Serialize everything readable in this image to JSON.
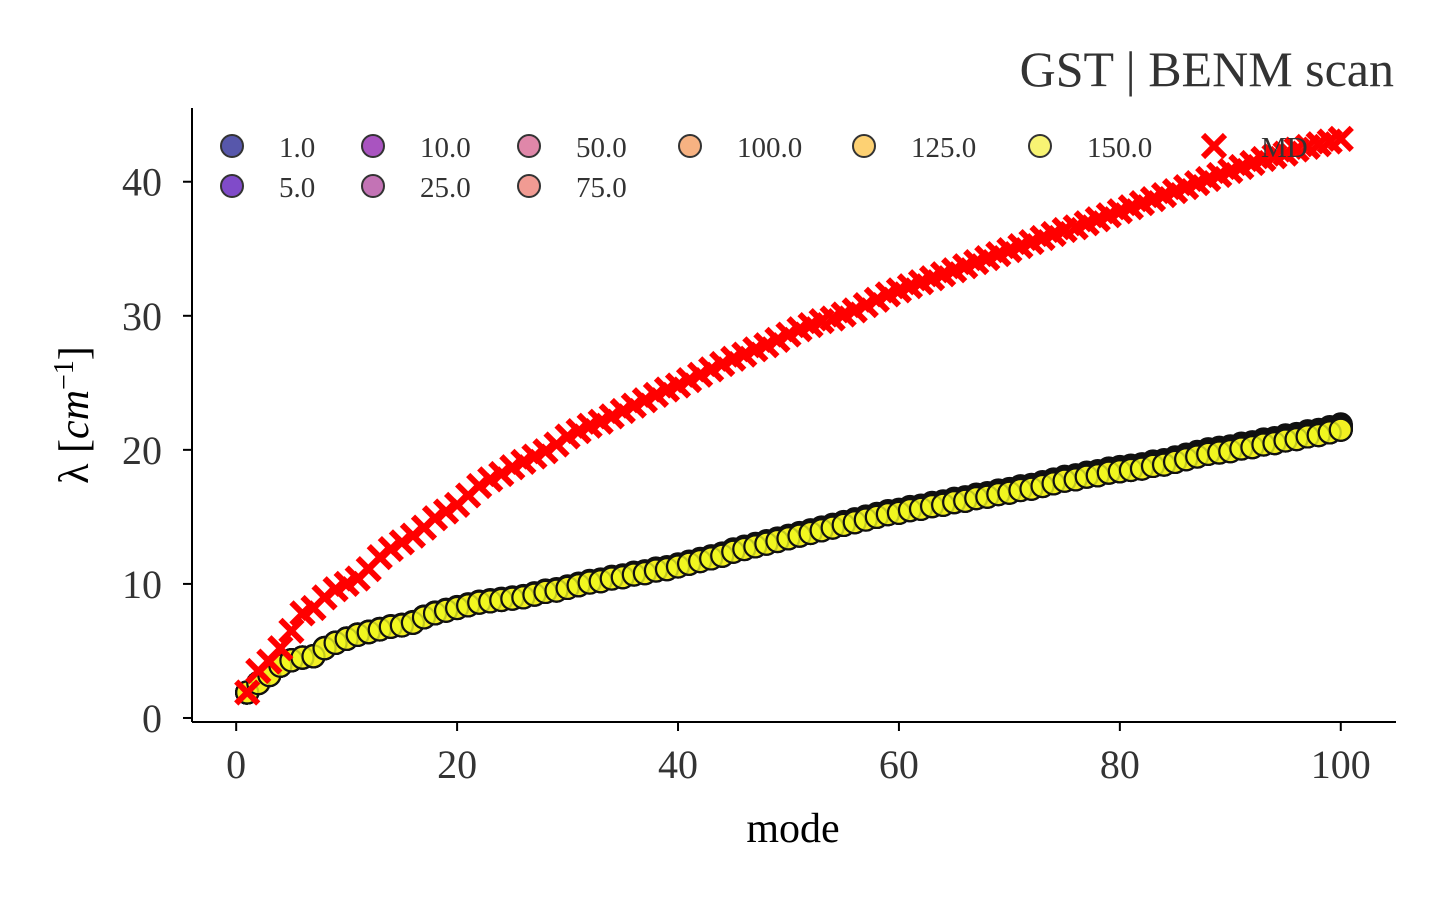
{
  "chart_data": {
    "type": "scatter",
    "title": "GST | BENM scan",
    "xlabel": "mode",
    "ylabel_prefix": "λ [",
    "ylabel_var": "cm",
    "ylabel_sup": "−1",
    "ylabel_suffix": "]",
    "xlim": [
      -4,
      105
    ],
    "ylim": [
      -0.3,
      45.5
    ],
    "xticks": [
      0,
      20,
      40,
      60,
      80,
      100
    ],
    "yticks": [
      0,
      10,
      20,
      30,
      40
    ],
    "x_start": 1,
    "x_end": 100,
    "grid": false,
    "legend_position": "top-left",
    "legend_columns": 7,
    "series": [
      {
        "name": "1.0",
        "color": "#0d0887",
        "marker": "circle",
        "start": 1.85,
        "end": 21.9
      },
      {
        "name": "5.0",
        "color": "#41049d",
        "marker": "circle",
        "start": 1.85,
        "end": 21.8
      },
      {
        "name": "10.0",
        "color": "#6a00a8",
        "marker": "circle",
        "start": 1.85,
        "end": 21.8
      },
      {
        "name": "25.0",
        "color": "#8f0da4",
        "marker": "circle",
        "start": 1.85,
        "end": 21.7
      },
      {
        "name": "50.0",
        "color": "#b12a90",
        "marker": "circle",
        "start": 1.85,
        "end": 21.7
      },
      {
        "name": "75.0",
        "color": "#cc4778",
        "marker": "circle",
        "start": 1.85,
        "end": 21.6
      },
      {
        "name": "100.0",
        "color": "#e16462",
        "marker": "circle",
        "start": 1.85,
        "end": 21.6
      },
      {
        "name": "125.0",
        "color": "#f2844b",
        "marker": "circle",
        "start": 1.85,
        "end": 21.6
      },
      {
        "name": "150.0",
        "color": "#fca636",
        "marker": "circle",
        "start": 1.85,
        "end": 21.5
      },
      {
        "name": "",
        "color": "#fcce25",
        "marker": "circle",
        "start": 1.85,
        "end": 21.5
      },
      {
        "name": "",
        "color": "#f0f921",
        "marker": "circle",
        "start": 1.85,
        "end": 21.5
      },
      {
        "name": "MD",
        "color": "#ff0000",
        "marker": "x",
        "start": 1.9,
        "end": 43.2
      }
    ],
    "legend_layout": [
      {
        "label": "1.0",
        "color": "#3a3a9c",
        "marker": "circle"
      },
      {
        "label": "5.0",
        "color": "#6a2bc0",
        "marker": "circle"
      },
      {
        "label": "10.0",
        "color": "#9a36b5",
        "marker": "circle"
      },
      {
        "label": "25.0",
        "color": "#b85aa8",
        "marker": "circle"
      },
      {
        "label": "50.0",
        "color": "#d9729a",
        "marker": "circle"
      },
      {
        "label": "75.0",
        "color": "#ee8a80",
        "marker": "circle"
      },
      {
        "label": "100.0",
        "color": "#f6a56c",
        "marker": "circle"
      },
      {
        "label": "125.0",
        "color": "#fdc95a",
        "marker": "circle"
      },
      {
        "label": "150.0",
        "color": "#f7f25a",
        "marker": "circle"
      },
      {
        "label": "MD",
        "color": "#ff0000",
        "marker": "x"
      }
    ],
    "scatter_points": [
      [
        1,
        1.9
      ],
      [
        2,
        2.6
      ],
      [
        3,
        3.2
      ],
      [
        4,
        3.9
      ],
      [
        5,
        4.3
      ],
      [
        6,
        4.5
      ],
      [
        7,
        4.6
      ],
      [
        8,
        5.2
      ],
      [
        9,
        5.6
      ],
      [
        10,
        5.9
      ],
      [
        11,
        6.2
      ],
      [
        12,
        6.4
      ],
      [
        13,
        6.6
      ],
      [
        14,
        6.8
      ],
      [
        15,
        6.9
      ],
      [
        16,
        7.1
      ],
      [
        17,
        7.5
      ],
      [
        18,
        7.8
      ],
      [
        19,
        8.0
      ],
      [
        20,
        8.2
      ],
      [
        21,
        8.4
      ],
      [
        22,
        8.6
      ],
      [
        23,
        8.7
      ],
      [
        24,
        8.8
      ],
      [
        25,
        8.9
      ],
      [
        26,
        9.0
      ],
      [
        27,
        9.2
      ],
      [
        28,
        9.4
      ],
      [
        29,
        9.5
      ],
      [
        30,
        9.7
      ],
      [
        31,
        9.9
      ],
      [
        32,
        10.1
      ],
      [
        33,
        10.2
      ],
      [
        34,
        10.4
      ],
      [
        35,
        10.5
      ],
      [
        36,
        10.7
      ],
      [
        37,
        10.8
      ],
      [
        38,
        11.0
      ],
      [
        39,
        11.1
      ],
      [
        40,
        11.3
      ],
      [
        41,
        11.5
      ],
      [
        42,
        11.7
      ],
      [
        43,
        11.9
      ],
      [
        44,
        12.1
      ],
      [
        45,
        12.4
      ],
      [
        46,
        12.6
      ],
      [
        47,
        12.8
      ],
      [
        48,
        13.0
      ],
      [
        49,
        13.2
      ],
      [
        50,
        13.4
      ],
      [
        51,
        13.6
      ],
      [
        52,
        13.8
      ],
      [
        53,
        14.0
      ],
      [
        54,
        14.2
      ],
      [
        55,
        14.4
      ],
      [
        56,
        14.6
      ],
      [
        57,
        14.8
      ],
      [
        58,
        15.0
      ],
      [
        59,
        15.2
      ],
      [
        60,
        15.3
      ],
      [
        61,
        15.5
      ],
      [
        62,
        15.6
      ],
      [
        63,
        15.8
      ],
      [
        64,
        15.9
      ],
      [
        65,
        16.1
      ],
      [
        66,
        16.2
      ],
      [
        67,
        16.4
      ],
      [
        68,
        16.5
      ],
      [
        69,
        16.7
      ],
      [
        70,
        16.8
      ],
      [
        71,
        17.0
      ],
      [
        72,
        17.1
      ],
      [
        73,
        17.3
      ],
      [
        74,
        17.5
      ],
      [
        75,
        17.7
      ],
      [
        76,
        17.8
      ],
      [
        77,
        18.0
      ],
      [
        78,
        18.1
      ],
      [
        79,
        18.3
      ],
      [
        80,
        18.4
      ],
      [
        81,
        18.5
      ],
      [
        82,
        18.6
      ],
      [
        83,
        18.8
      ],
      [
        84,
        18.9
      ],
      [
        85,
        19.1
      ],
      [
        86,
        19.3
      ],
      [
        87,
        19.5
      ],
      [
        88,
        19.7
      ],
      [
        89,
        19.8
      ],
      [
        90,
        19.9
      ],
      [
        91,
        20.1
      ],
      [
        92,
        20.2
      ],
      [
        93,
        20.4
      ],
      [
        94,
        20.5
      ],
      [
        95,
        20.7
      ],
      [
        96,
        20.8
      ],
      [
        97,
        21.0
      ],
      [
        98,
        21.1
      ],
      [
        99,
        21.3
      ],
      [
        100,
        21.5
      ]
    ],
    "md_points": [
      [
        1,
        1.9
      ],
      [
        2,
        3.5
      ],
      [
        3,
        4.2
      ],
      [
        4,
        5.2
      ],
      [
        5,
        6.5
      ],
      [
        6,
        7.8
      ],
      [
        7,
        8.2
      ],
      [
        8,
        9.0
      ],
      [
        9,
        9.6
      ],
      [
        10,
        10.0
      ],
      [
        11,
        10.4
      ],
      [
        12,
        11.1
      ],
      [
        13,
        12.0
      ],
      [
        14,
        12.6
      ],
      [
        15,
        13.1
      ],
      [
        16,
        13.6
      ],
      [
        17,
        14.2
      ],
      [
        18,
        14.9
      ],
      [
        19,
        15.4
      ],
      [
        20,
        15.9
      ],
      [
        21,
        16.6
      ],
      [
        22,
        17.3
      ],
      [
        23,
        17.8
      ],
      [
        24,
        18.2
      ],
      [
        25,
        18.7
      ],
      [
        26,
        19.1
      ],
      [
        27,
        19.5
      ],
      [
        28,
        19.9
      ],
      [
        29,
        20.4
      ],
      [
        30,
        21.0
      ],
      [
        31,
        21.4
      ],
      [
        32,
        21.8
      ],
      [
        33,
        22.1
      ],
      [
        34,
        22.5
      ],
      [
        35,
        22.9
      ],
      [
        36,
        23.3
      ],
      [
        37,
        23.7
      ],
      [
        38,
        24.1
      ],
      [
        39,
        24.5
      ],
      [
        40,
        24.8
      ],
      [
        41,
        25.2
      ],
      [
        42,
        25.6
      ],
      [
        43,
        26.0
      ],
      [
        44,
        26.4
      ],
      [
        45,
        26.8
      ],
      [
        46,
        27.1
      ],
      [
        47,
        27.5
      ],
      [
        48,
        27.8
      ],
      [
        49,
        28.2
      ],
      [
        50,
        28.6
      ],
      [
        51,
        29.0
      ],
      [
        52,
        29.3
      ],
      [
        53,
        29.6
      ],
      [
        54,
        29.8
      ],
      [
        55,
        30.1
      ],
      [
        56,
        30.4
      ],
      [
        57,
        30.8
      ],
      [
        58,
        31.2
      ],
      [
        59,
        31.6
      ],
      [
        60,
        31.9
      ],
      [
        61,
        32.2
      ],
      [
        62,
        32.5
      ],
      [
        63,
        32.8
      ],
      [
        64,
        33.1
      ],
      [
        65,
        33.4
      ],
      [
        66,
        33.7
      ],
      [
        67,
        34.0
      ],
      [
        68,
        34.3
      ],
      [
        69,
        34.6
      ],
      [
        70,
        34.9
      ],
      [
        71,
        35.2
      ],
      [
        72,
        35.5
      ],
      [
        73,
        35.8
      ],
      [
        74,
        36.1
      ],
      [
        75,
        36.4
      ],
      [
        76,
        36.6
      ],
      [
        77,
        36.9
      ],
      [
        78,
        37.2
      ],
      [
        79,
        37.5
      ],
      [
        80,
        37.8
      ],
      [
        81,
        38.1
      ],
      [
        82,
        38.4
      ],
      [
        83,
        38.7
      ],
      [
        84,
        39.0
      ],
      [
        85,
        39.3
      ],
      [
        86,
        39.6
      ],
      [
        87,
        39.9
      ],
      [
        88,
        40.2
      ],
      [
        89,
        40.5
      ],
      [
        90,
        40.8
      ],
      [
        91,
        41.1
      ],
      [
        92,
        41.4
      ],
      [
        93,
        41.7
      ],
      [
        94,
        41.9
      ],
      [
        95,
        42.1
      ],
      [
        96,
        42.4
      ],
      [
        97,
        42.6
      ],
      [
        98,
        42.8
      ],
      [
        99,
        43.0
      ],
      [
        100,
        43.2
      ]
    ]
  }
}
